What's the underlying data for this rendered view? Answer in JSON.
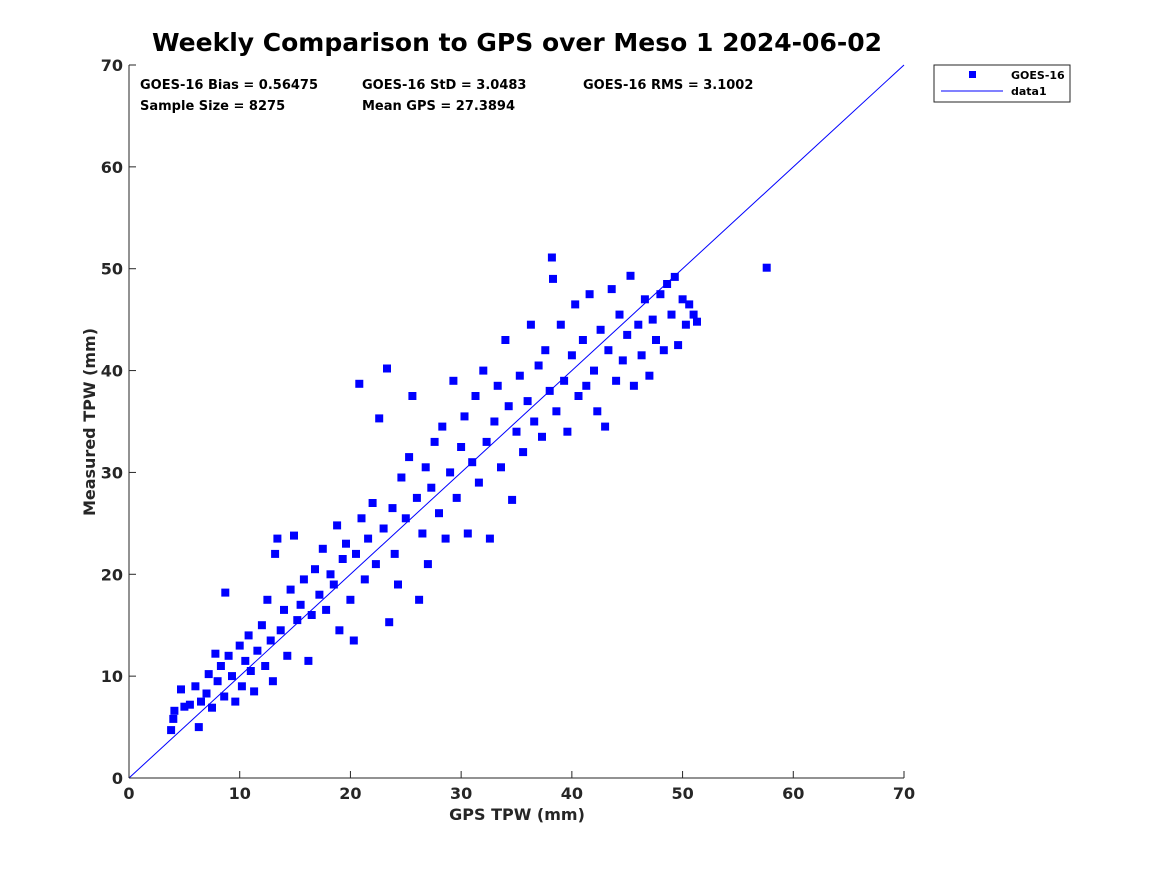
{
  "chart_data": {
    "type": "scatter",
    "title": "Weekly Comparison to GPS over Meso 1 2024-06-02",
    "xlabel": "GPS TPW (mm)",
    "ylabel": "Measured TPW (mm)",
    "xlim": [
      0,
      70
    ],
    "ylim": [
      0,
      70
    ],
    "xticks": [
      "0",
      "10",
      "20",
      "30",
      "40",
      "50",
      "60",
      "70"
    ],
    "yticks": [
      "0",
      "10",
      "20",
      "30",
      "40",
      "50",
      "60",
      "70"
    ],
    "grid": false,
    "legend_position": "top-right, outside plot",
    "stats": [
      "GOES-16 Bias = 0.56475",
      "GOES-16 StD = 3.0483",
      "GOES-16 RMS = 3.1002",
      "Sample Size = 8275",
      "Mean GPS = 27.3894"
    ],
    "series": [
      {
        "name": "GOES-16",
        "marker": "square",
        "color": "#0000ff",
        "points": [
          [
            3.8,
            4.7
          ],
          [
            4.0,
            5.8
          ],
          [
            4.1,
            6.6
          ],
          [
            4.7,
            8.7
          ],
          [
            5.0,
            7.0
          ],
          [
            5.5,
            7.2
          ],
          [
            6.0,
            9.0
          ],
          [
            6.3,
            5.0
          ],
          [
            6.5,
            7.5
          ],
          [
            7.0,
            8.3
          ],
          [
            7.2,
            10.2
          ],
          [
            7.5,
            6.9
          ],
          [
            7.8,
            12.2
          ],
          [
            8.0,
            9.5
          ],
          [
            8.3,
            11.0
          ],
          [
            8.6,
            8.0
          ],
          [
            8.7,
            18.2
          ],
          [
            9.0,
            12.0
          ],
          [
            9.3,
            10.0
          ],
          [
            9.6,
            7.5
          ],
          [
            10.0,
            13.0
          ],
          [
            10.2,
            9.0
          ],
          [
            10.5,
            11.5
          ],
          [
            10.8,
            14.0
          ],
          [
            11.0,
            10.5
          ],
          [
            11.3,
            8.5
          ],
          [
            11.6,
            12.5
          ],
          [
            12.0,
            15.0
          ],
          [
            12.3,
            11.0
          ],
          [
            12.5,
            17.5
          ],
          [
            12.8,
            13.5
          ],
          [
            13.0,
            9.5
          ],
          [
            13.2,
            22.0
          ],
          [
            13.4,
            23.5
          ],
          [
            13.7,
            14.5
          ],
          [
            14.0,
            16.5
          ],
          [
            14.3,
            12.0
          ],
          [
            14.6,
            18.5
          ],
          [
            14.9,
            23.8
          ],
          [
            15.2,
            15.5
          ],
          [
            15.5,
            17.0
          ],
          [
            15.8,
            19.5
          ],
          [
            16.2,
            11.5
          ],
          [
            16.5,
            16.0
          ],
          [
            16.8,
            20.5
          ],
          [
            17.2,
            18.0
          ],
          [
            17.5,
            22.5
          ],
          [
            17.8,
            16.5
          ],
          [
            18.2,
            20.0
          ],
          [
            18.5,
            19.0
          ],
          [
            18.8,
            24.8
          ],
          [
            19.0,
            14.5
          ],
          [
            19.3,
            21.5
          ],
          [
            19.6,
            23.0
          ],
          [
            20.0,
            17.5
          ],
          [
            20.3,
            13.5
          ],
          [
            20.5,
            22.0
          ],
          [
            20.8,
            38.7
          ],
          [
            21.0,
            25.5
          ],
          [
            21.3,
            19.5
          ],
          [
            21.6,
            23.5
          ],
          [
            22.0,
            27.0
          ],
          [
            22.3,
            21.0
          ],
          [
            22.6,
            35.3
          ],
          [
            23.0,
            24.5
          ],
          [
            23.3,
            40.2
          ],
          [
            23.5,
            15.3
          ],
          [
            23.8,
            26.5
          ],
          [
            24.0,
            22.0
          ],
          [
            24.3,
            19.0
          ],
          [
            24.6,
            29.5
          ],
          [
            25.0,
            25.5
          ],
          [
            25.3,
            31.5
          ],
          [
            25.6,
            37.5
          ],
          [
            26.0,
            27.5
          ],
          [
            26.2,
            17.5
          ],
          [
            26.5,
            24.0
          ],
          [
            26.8,
            30.5
          ],
          [
            27.0,
            21.0
          ],
          [
            27.3,
            28.5
          ],
          [
            27.6,
            33.0
          ],
          [
            28.0,
            26.0
          ],
          [
            28.3,
            34.5
          ],
          [
            28.6,
            23.5
          ],
          [
            29.0,
            30.0
          ],
          [
            29.3,
            39.0
          ],
          [
            29.6,
            27.5
          ],
          [
            30.0,
            32.5
          ],
          [
            30.3,
            35.5
          ],
          [
            30.6,
            24.0
          ],
          [
            31.0,
            31.0
          ],
          [
            31.3,
            37.5
          ],
          [
            31.6,
            29.0
          ],
          [
            32.0,
            40.0
          ],
          [
            32.3,
            33.0
          ],
          [
            32.6,
            23.5
          ],
          [
            33.0,
            35.0
          ],
          [
            33.3,
            38.5
          ],
          [
            33.6,
            30.5
          ],
          [
            34.0,
            43.0
          ],
          [
            34.3,
            36.5
          ],
          [
            34.6,
            27.3
          ],
          [
            35.0,
            34.0
          ],
          [
            35.3,
            39.5
          ],
          [
            35.6,
            32.0
          ],
          [
            36.0,
            37.0
          ],
          [
            36.3,
            44.5
          ],
          [
            36.6,
            35.0
          ],
          [
            37.0,
            40.5
          ],
          [
            37.3,
            33.5
          ],
          [
            37.6,
            42.0
          ],
          [
            38.0,
            38.0
          ],
          [
            38.2,
            51.1
          ],
          [
            38.3,
            49.0
          ],
          [
            38.6,
            36.0
          ],
          [
            39.0,
            44.5
          ],
          [
            39.3,
            39.0
          ],
          [
            39.6,
            34.0
          ],
          [
            40.0,
            41.5
          ],
          [
            40.3,
            46.5
          ],
          [
            40.6,
            37.5
          ],
          [
            41.0,
            43.0
          ],
          [
            41.3,
            38.5
          ],
          [
            41.6,
            47.5
          ],
          [
            42.0,
            40.0
          ],
          [
            42.3,
            36.0
          ],
          [
            42.6,
            44.0
          ],
          [
            43.0,
            34.5
          ],
          [
            43.3,
            42.0
          ],
          [
            43.6,
            48.0
          ],
          [
            44.0,
            39.0
          ],
          [
            44.3,
            45.5
          ],
          [
            44.6,
            41.0
          ],
          [
            45.0,
            43.5
          ],
          [
            45.3,
            49.3
          ],
          [
            45.6,
            38.5
          ],
          [
            46.0,
            44.5
          ],
          [
            46.3,
            41.5
          ],
          [
            46.6,
            47.0
          ],
          [
            47.0,
            39.5
          ],
          [
            47.3,
            45.0
          ],
          [
            47.6,
            43.0
          ],
          [
            48.0,
            47.5
          ],
          [
            48.3,
            42.0
          ],
          [
            48.6,
            48.5
          ],
          [
            49.0,
            45.5
          ],
          [
            49.3,
            49.2
          ],
          [
            49.6,
            42.5
          ],
          [
            50.0,
            47.0
          ],
          [
            50.3,
            44.5
          ],
          [
            50.6,
            46.5
          ],
          [
            51.0,
            45.5
          ],
          [
            51.3,
            44.8
          ],
          [
            57.6,
            50.1
          ]
        ]
      },
      {
        "name": "data1",
        "type": "line",
        "color": "#0000ff",
        "points": [
          [
            0,
            0
          ],
          [
            70,
            70
          ]
        ]
      }
    ]
  }
}
